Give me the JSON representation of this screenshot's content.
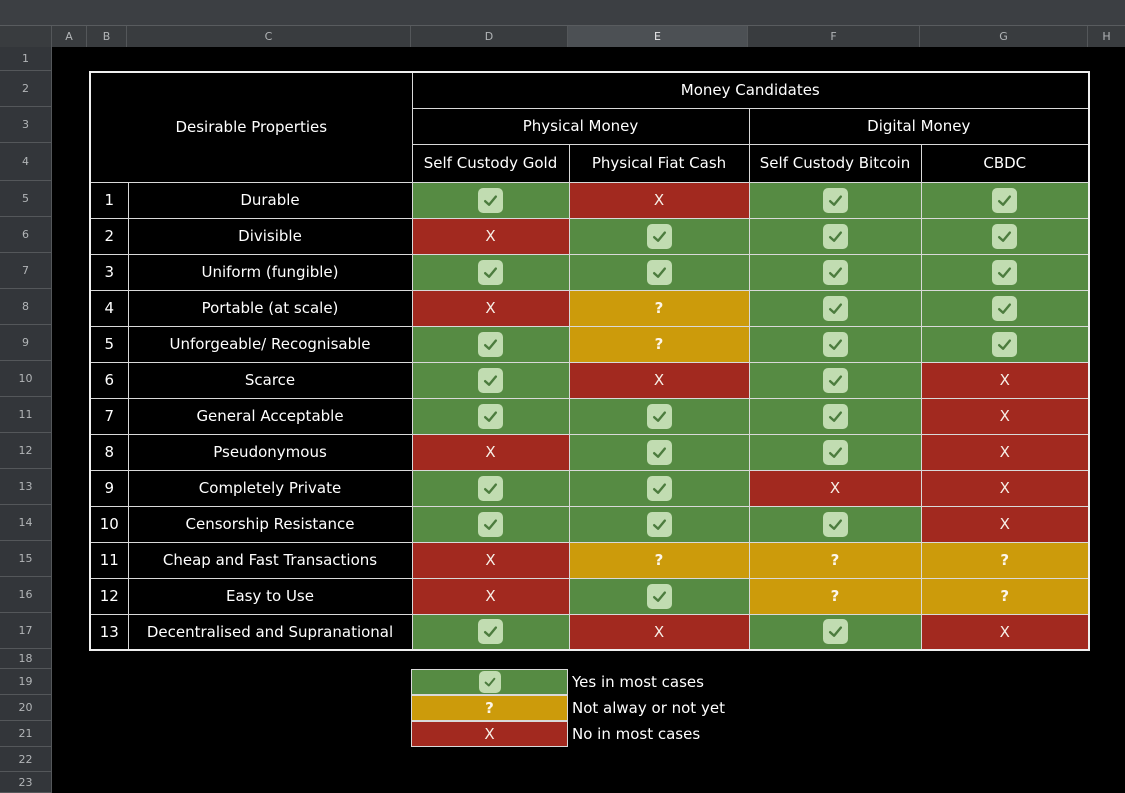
{
  "spreadsheet": {
    "column_headers": [
      "A",
      "B",
      "C",
      "D",
      "E",
      "F",
      "G",
      "H"
    ],
    "selected_column": "E",
    "row_numbers": [
      "1",
      "2",
      "3",
      "4",
      "5",
      "6",
      "7",
      "8",
      "9",
      "10",
      "11",
      "12",
      "13",
      "14",
      "15",
      "16",
      "17",
      "18",
      "19",
      "20",
      "21",
      "22",
      "23"
    ]
  },
  "table": {
    "corner_title": "Desirable Properties",
    "group_title": "Money Candidates",
    "groups": [
      {
        "label": "Physical Money",
        "columns": [
          "Self Custody Gold",
          "Physical Fiat Cash"
        ]
      },
      {
        "label": "Digital Money",
        "columns": [
          "Self Custody Bitcoin",
          "CBDC"
        ]
      }
    ],
    "rows": [
      {
        "num": "1",
        "property": "Durable",
        "values": [
          "yes",
          "x",
          "yes",
          "yes"
        ]
      },
      {
        "num": "2",
        "property": "Divisible",
        "values": [
          "x",
          "yes",
          "yes",
          "yes"
        ]
      },
      {
        "num": "3",
        "property": "Uniform (fungible)",
        "values": [
          "yes",
          "yes",
          "yes",
          "yes"
        ]
      },
      {
        "num": "4",
        "property": "Portable (at scale)",
        "values": [
          "x",
          "q",
          "yes",
          "yes"
        ]
      },
      {
        "num": "5",
        "property": "Unforgeable/ Recognisable",
        "values": [
          "yes",
          "q",
          "yes",
          "yes"
        ]
      },
      {
        "num": "6",
        "property": "Scarce",
        "values": [
          "yes",
          "x",
          "yes",
          "x"
        ]
      },
      {
        "num": "7",
        "property": "General Acceptable",
        "values": [
          "yes",
          "yes",
          "yes",
          "x"
        ]
      },
      {
        "num": "8",
        "property": "Pseudonymous",
        "values": [
          "x",
          "yes",
          "yes",
          "x"
        ]
      },
      {
        "num": "9",
        "property": "Completely Private",
        "values": [
          "yes",
          "yes",
          "x",
          "x"
        ]
      },
      {
        "num": "10",
        "property": "Censorship Resistance",
        "values": [
          "yes",
          "yes",
          "yes",
          "x"
        ]
      },
      {
        "num": "11",
        "property": "Cheap and Fast Transactions",
        "values": [
          "x",
          "q",
          "q",
          "q"
        ]
      },
      {
        "num": "12",
        "property": "Easy to Use",
        "values": [
          "x",
          "yes",
          "q",
          "q"
        ]
      },
      {
        "num": "13",
        "property": "Decentralised and Supranational",
        "values": [
          "yes",
          "x",
          "yes",
          "x"
        ]
      }
    ]
  },
  "statuses": {
    "yes": {
      "symbol": "",
      "color": "#568B43",
      "box_color": "#C1DCB1",
      "check_color": "#4C7C3E"
    },
    "q": {
      "symbol": "?",
      "color": "#CC9B0B",
      "symbol_color": "#FDF6EA"
    },
    "x": {
      "symbol": "X",
      "color": "#A2291F",
      "symbol_color": "#F7EFE7"
    }
  },
  "legend": {
    "items": [
      {
        "status": "yes",
        "label": "Yes in most cases"
      },
      {
        "status": "q",
        "label": "Not alway or not yet"
      },
      {
        "status": "x",
        "label": "No in most cases"
      }
    ]
  }
}
